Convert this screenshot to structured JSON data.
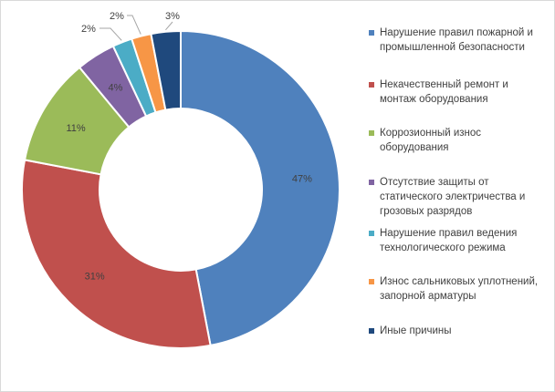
{
  "chart_data": {
    "type": "doughnut",
    "title": "",
    "legend_position": "right",
    "categories": [
      "Нарушение правил пожарной и промышленной безопасности",
      "Некачественный ремонт и монтаж оборудования",
      "Коррозионный износ оборудования",
      "Отсутствие защиты от статического электричества и грозовых разрядов",
      "Нарушение правил ведения технологического режима",
      "Износ сальниковых уплотнений, запорной арматуры",
      "Иные причины"
    ],
    "legend_lines": [
      [
        "Нарушение правил пожарной и",
        "промышленной безопасности"
      ],
      [
        "Некачественный ремонт и",
        "монтаж оборудования"
      ],
      [
        "Коррозионный износ",
        "оборудования"
      ],
      [
        "Отсутствие защиты от",
        "статического электричества и",
        "грозовых разрядов"
      ],
      [
        "Нарушение правил ведения",
        "технологического режима"
      ],
      [
        "Износ сальниковых уплотнений,",
        "запорной арматуры"
      ],
      [
        "Иные причины"
      ]
    ],
    "values": [
      47,
      31,
      11,
      4,
      2,
      2,
      3
    ],
    "labels": [
      "47%",
      "31%",
      "11%",
      "4%",
      "2%",
      "2%",
      "3%"
    ],
    "colors": [
      "#4f81bd",
      "#c0504d",
      "#9bbb59",
      "#8064a2",
      "#4bacc6",
      "#f79646",
      "#1f497d"
    ]
  }
}
